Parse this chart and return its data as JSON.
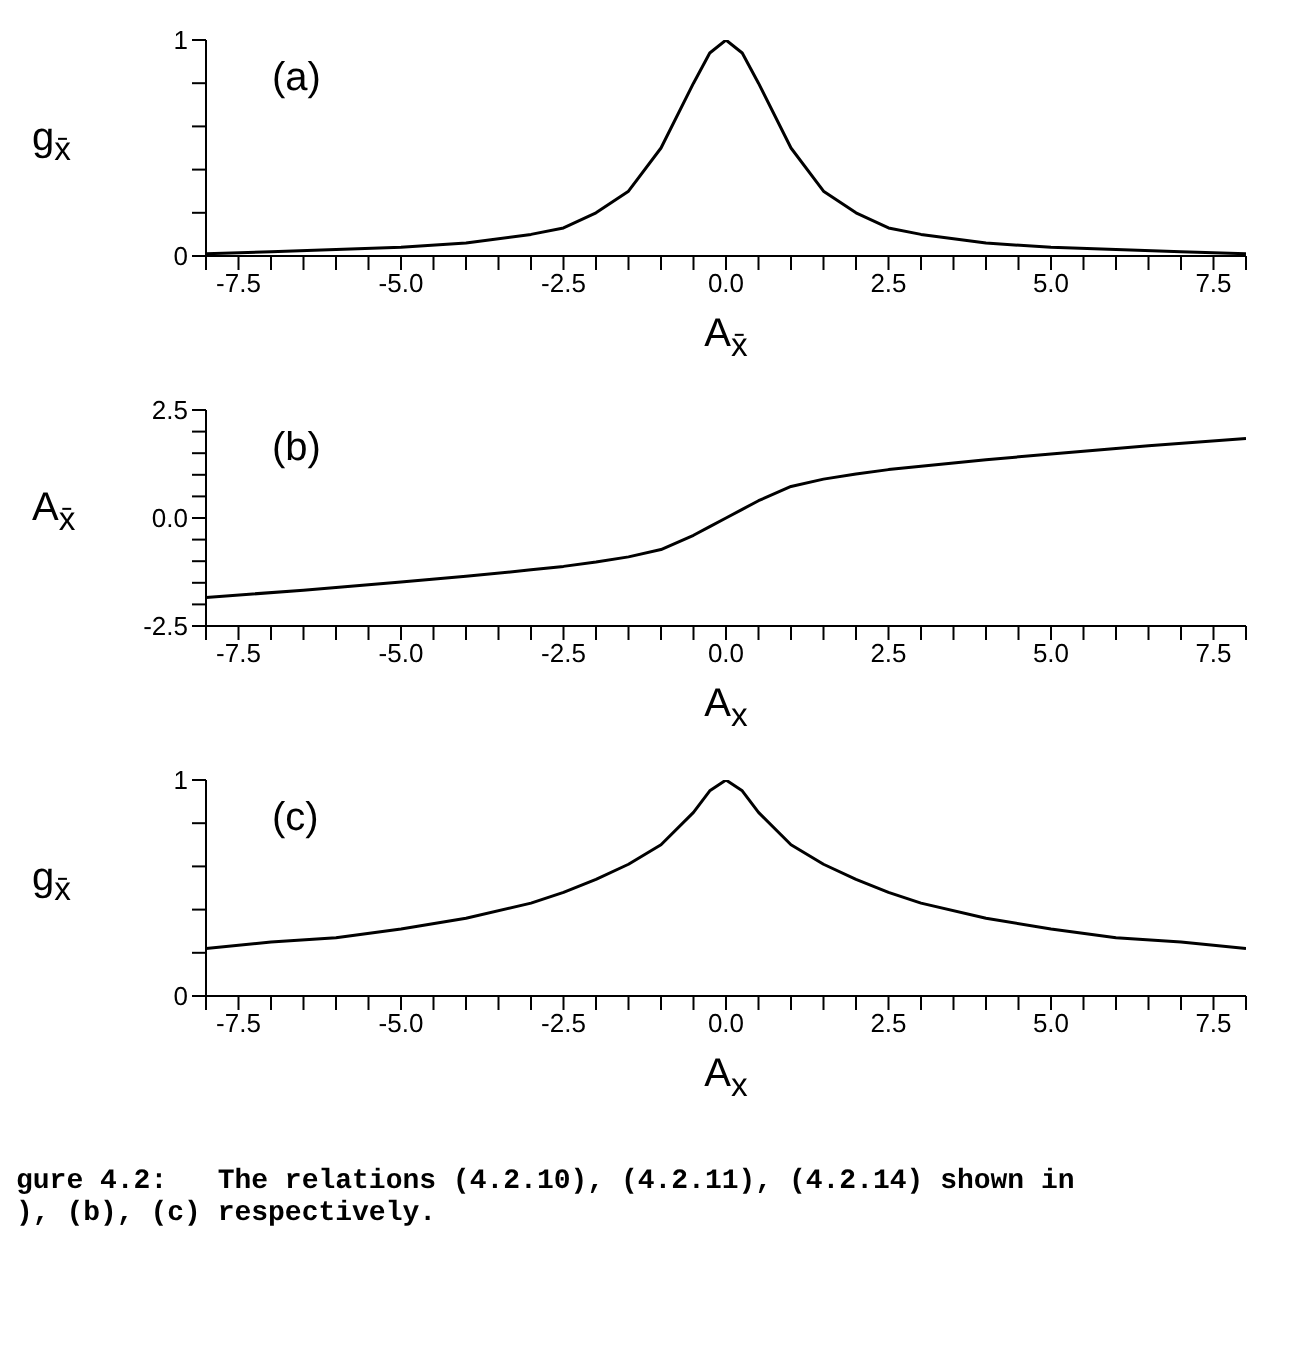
{
  "chart_data": [
    {
      "type": "line",
      "xlabel": "A$_{x̄}$",
      "ylabel": "g$_{x̄}$",
      "annotations": [
        "(a)"
      ],
      "marker": "none",
      "line_style": "solid",
      "x": [
        -8,
        -7,
        -6,
        -5,
        -4,
        -3,
        -2.5,
        -2,
        -1.5,
        -1,
        -0.5,
        -0.25,
        0,
        0.25,
        0.5,
        1,
        1.5,
        2,
        2.5,
        3,
        4,
        5,
        6,
        7,
        8
      ],
      "series": [
        {
          "color": "#000000",
          "values": [
            0.01,
            0.02,
            0.03,
            0.04,
            0.06,
            0.1,
            0.13,
            0.2,
            0.3,
            0.5,
            0.8,
            0.94,
            1,
            0.94,
            0.8,
            0.5,
            0.3,
            0.2,
            0.13,
            0.1,
            0.06,
            0.04,
            0.03,
            0.02,
            0.01
          ]
        }
      ],
      "xlim": [
        -8,
        8
      ],
      "xticks": [
        {
          "value": -8,
          "label": null
        },
        -7.5,
        {
          "value": -7,
          "label": null
        },
        {
          "value": -6.5,
          "label": null
        },
        {
          "value": -6,
          "label": null
        },
        {
          "value": -5.5,
          "label": null
        },
        {
          "value": -5,
          "label": "-5.0"
        },
        {
          "value": -4.5,
          "label": null
        },
        {
          "value": -4,
          "label": null
        },
        {
          "value": -3.5,
          "label": null
        },
        {
          "value": -3,
          "label": null
        },
        -2.5,
        {
          "value": -2,
          "label": null
        },
        {
          "value": -1.5,
          "label": null
        },
        {
          "value": -1,
          "label": null
        },
        {
          "value": -0.5,
          "label": null
        },
        {
          "value": 0,
          "label": "0.0"
        },
        {
          "value": 0.5,
          "label": null
        },
        {
          "value": 1,
          "label": null
        },
        {
          "value": 1.5,
          "label": null
        },
        {
          "value": 2,
          "label": null
        },
        2.5,
        {
          "value": 3,
          "label": null
        },
        {
          "value": 3.5,
          "label": null
        },
        {
          "value": 4,
          "label": null
        },
        {
          "value": 4.5,
          "label": null
        },
        {
          "value": 5,
          "label": "5.0"
        },
        {
          "value": 5.5,
          "label": null
        },
        {
          "value": 6,
          "label": null
        },
        {
          "value": 6.5,
          "label": null
        },
        {
          "value": 7,
          "label": null
        },
        7.5,
        {
          "value": 8,
          "label": null
        }
      ],
      "ylim": [
        0,
        1
      ],
      "yticks": [
        0,
        {
          "value": 0.2,
          "label": null
        },
        {
          "value": 0.4,
          "label": null
        },
        {
          "value": 0.6,
          "label": null
        },
        {
          "value": 0.8,
          "label": null
        },
        1
      ]
    },
    {
      "type": "line",
      "xlabel": "A$_{x}$",
      "ylabel": "A$_{x̄}$",
      "annotations": [
        "(b)"
      ],
      "marker": "none",
      "line_style": "solid",
      "x": [
        -8,
        -6.5,
        -5,
        -4,
        -3,
        -2.5,
        -2,
        -1.5,
        -1,
        -0.5,
        -0.25,
        0,
        0.25,
        0.5,
        1,
        1.5,
        2,
        2.5,
        3,
        4,
        5,
        6.5,
        8
      ],
      "series": [
        {
          "color": "#000000",
          "values": [
            -1.84,
            -1.67,
            -1.48,
            -1.35,
            -1.2,
            -1.12,
            -1.02,
            -0.9,
            -0.73,
            -0.4,
            -0.2,
            0,
            0.2,
            0.4,
            0.73,
            0.9,
            1.02,
            1.12,
            1.2,
            1.35,
            1.48,
            1.67,
            1.84
          ]
        }
      ],
      "xlim": [
        -8,
        8
      ],
      "xticks": [
        {
          "value": -8,
          "label": null
        },
        -7.5,
        {
          "value": -7,
          "label": null
        },
        {
          "value": -6.5,
          "label": null
        },
        {
          "value": -6,
          "label": null
        },
        {
          "value": -5.5,
          "label": null
        },
        {
          "value": -5,
          "label": "-5.0"
        },
        {
          "value": -4.5,
          "label": null
        },
        {
          "value": -4,
          "label": null
        },
        {
          "value": -3.5,
          "label": null
        },
        {
          "value": -3,
          "label": null
        },
        -2.5,
        {
          "value": -2,
          "label": null
        },
        {
          "value": -1.5,
          "label": null
        },
        {
          "value": -1,
          "label": null
        },
        {
          "value": -0.5,
          "label": null
        },
        {
          "value": 0,
          "label": "0.0"
        },
        {
          "value": 0.5,
          "label": null
        },
        {
          "value": 1,
          "label": null
        },
        {
          "value": 1.5,
          "label": null
        },
        {
          "value": 2,
          "label": null
        },
        2.5,
        {
          "value": 3,
          "label": null
        },
        {
          "value": 3.5,
          "label": null
        },
        {
          "value": 4,
          "label": null
        },
        {
          "value": 4.5,
          "label": null
        },
        {
          "value": 5,
          "label": "5.0"
        },
        {
          "value": 5.5,
          "label": null
        },
        {
          "value": 6,
          "label": null
        },
        {
          "value": 6.5,
          "label": null
        },
        {
          "value": 7,
          "label": null
        },
        7.5,
        {
          "value": 8,
          "label": null
        }
      ],
      "ylim": [
        -2.5,
        2.5
      ],
      "yticks": [
        -2.5,
        {
          "value": -2,
          "label": null
        },
        {
          "value": -1.5,
          "label": null
        },
        {
          "value": -1,
          "label": null
        },
        {
          "value": -0.5,
          "label": null
        },
        {
          "value": 0,
          "label": "0.0"
        },
        {
          "value": 0.5,
          "label": null
        },
        {
          "value": 1,
          "label": null
        },
        {
          "value": 1.5,
          "label": null
        },
        {
          "value": 2,
          "label": null
        },
        2.5
      ]
    },
    {
      "type": "line",
      "xlabel": "A$_{x}$",
      "ylabel": "g$_{x̄}$",
      "annotations": [
        "(c)",
        "gure 4.2:   The relations (4.2.10), (4.2.11), (4.2.14) shown in",
        "), (b), (c) respectively."
      ],
      "marker": "none",
      "line_style": "solid",
      "x": [
        -8,
        -7,
        -6,
        -5,
        -4,
        -3,
        -2.5,
        -2,
        -1.5,
        -1,
        -0.5,
        -0.25,
        0,
        0.25,
        0.5,
        1,
        1.5,
        2,
        2.5,
        3,
        4,
        5,
        6,
        7,
        8
      ],
      "series": [
        {
          "color": "#000000",
          "values": [
            0.22,
            0.25,
            0.27,
            0.31,
            0.36,
            0.43,
            0.48,
            0.54,
            0.61,
            0.7,
            0.85,
            0.95,
            1,
            0.95,
            0.85,
            0.7,
            0.61,
            0.54,
            0.48,
            0.43,
            0.36,
            0.31,
            0.27,
            0.25,
            0.22
          ]
        }
      ],
      "xlim": [
        -8,
        8
      ],
      "xticks": [
        {
          "value": -8,
          "label": null
        },
        -7.5,
        {
          "value": -7,
          "label": null
        },
        {
          "value": -6.5,
          "label": null
        },
        {
          "value": -6,
          "label": null
        },
        {
          "value": -5.5,
          "label": null
        },
        {
          "value": -5,
          "label": "-5.0"
        },
        {
          "value": -4.5,
          "label": null
        },
        {
          "value": -4,
          "label": null
        },
        {
          "value": -3.5,
          "label": null
        },
        {
          "value": -3,
          "label": null
        },
        -2.5,
        {
          "value": -2,
          "label": null
        },
        {
          "value": -1.5,
          "label": null
        },
        {
          "value": -1,
          "label": null
        },
        {
          "value": -0.5,
          "label": null
        },
        {
          "value": 0,
          "label": "0.0"
        },
        {
          "value": 0.5,
          "label": null
        },
        {
          "value": 1,
          "label": null
        },
        {
          "value": 1.5,
          "label": null
        },
        {
          "value": 2,
          "label": null
        },
        2.5,
        {
          "value": 3,
          "label": null
        },
        {
          "value": 3.5,
          "label": null
        },
        {
          "value": 4,
          "label": null
        },
        {
          "value": 4.5,
          "label": null
        },
        {
          "value": 5,
          "label": "5.0"
        },
        {
          "value": 5.5,
          "label": null
        },
        {
          "value": 6,
          "label": null
        },
        {
          "value": 6.5,
          "label": null
        },
        {
          "value": 7,
          "label": null
        },
        7.5,
        {
          "value": 8,
          "label": null
        }
      ],
      "ylim": [
        0,
        1
      ],
      "yticks": [
        0,
        {
          "value": 0.2,
          "label": null
        },
        {
          "value": 0.4,
          "label": null
        },
        {
          "value": 0.6,
          "label": null
        },
        {
          "value": 0.8,
          "label": null
        },
        1
      ]
    }
  ]
}
